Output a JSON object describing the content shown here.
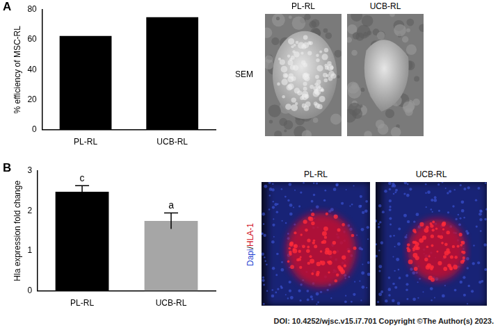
{
  "chart_data": [
    {
      "type": "bar",
      "panel": "A",
      "y_label": "% efficiency of MSC-RL",
      "categories": [
        "PL-RL",
        "UCB-RL"
      ],
      "values": [
        62.5,
        75
      ],
      "color": "#000000",
      "ylim": [
        0,
        80
      ],
      "yticks": [
        0,
        20,
        40,
        60,
        80
      ],
      "grid": false
    },
    {
      "type": "bar",
      "panel": "B",
      "y_label": "Hla expression fold change",
      "categories": [
        "PL-RL",
        "UCB-RL"
      ],
      "values": [
        2.48,
        1.75
      ],
      "errors": [
        0.15,
        0.2
      ],
      "significance": [
        "c",
        "a"
      ],
      "colors": [
        "#000000",
        "#a6a6a6"
      ],
      "ylim": [
        0,
        3
      ],
      "yticks": [
        0,
        1,
        2,
        3
      ],
      "grid": false
    }
  ],
  "images": [
    {
      "panel": "A",
      "row_label": "SEM",
      "titles": [
        "PL-RL",
        "UCB-RL"
      ]
    },
    {
      "panel": "B",
      "row_label": "Dapi/HLA-1",
      "titles": [
        "PL-RL",
        "UCB-RL"
      ]
    }
  ],
  "footer": "DOI: 10.4252/wjsc.v15.i7.701 Copyright ©The Author(s) 2023."
}
